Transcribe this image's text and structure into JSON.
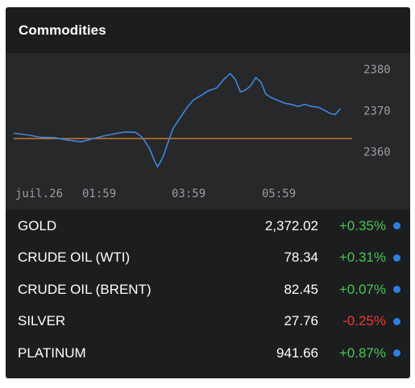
{
  "header": {
    "title": "Commodities"
  },
  "chart_data": {
    "type": "line",
    "x_ticks": [
      "juil.26",
      "01:59",
      "03:59",
      "05:59"
    ],
    "y_ticks": [
      2380,
      2370,
      2360
    ],
    "ylim": [
      2355,
      2382
    ],
    "reference_value": 2363.2,
    "series": [
      {
        "values": [
          [
            0,
            2364.5
          ],
          [
            0.04,
            2364.1
          ],
          [
            0.08,
            2363.5
          ],
          [
            0.12,
            2363.4
          ],
          [
            0.16,
            2362.8
          ],
          [
            0.2,
            2362.4
          ],
          [
            0.24,
            2363.3
          ],
          [
            0.27,
            2363.9
          ],
          [
            0.3,
            2364.4
          ],
          [
            0.33,
            2364.8
          ],
          [
            0.36,
            2364.7
          ],
          [
            0.38,
            2363.5
          ],
          [
            0.4,
            2361.0
          ],
          [
            0.415,
            2358.0
          ],
          [
            0.425,
            2356.3
          ],
          [
            0.44,
            2358.5
          ],
          [
            0.455,
            2362.0
          ],
          [
            0.47,
            2365.5
          ],
          [
            0.49,
            2368.0
          ],
          [
            0.51,
            2370.5
          ],
          [
            0.53,
            2372.5
          ],
          [
            0.55,
            2373.5
          ],
          [
            0.575,
            2374.8
          ],
          [
            0.6,
            2375.5
          ],
          [
            0.62,
            2377.5
          ],
          [
            0.64,
            2379.0
          ],
          [
            0.655,
            2377.5
          ],
          [
            0.67,
            2374.5
          ],
          [
            0.685,
            2375.0
          ],
          [
            0.7,
            2376.0
          ],
          [
            0.715,
            2378.0
          ],
          [
            0.73,
            2377.0
          ],
          [
            0.745,
            2374.0
          ],
          [
            0.76,
            2373.2
          ],
          [
            0.78,
            2372.5
          ],
          [
            0.8,
            2371.8
          ],
          [
            0.82,
            2371.5
          ],
          [
            0.84,
            2371.0
          ],
          [
            0.86,
            2371.5
          ],
          [
            0.88,
            2371.0
          ],
          [
            0.9,
            2370.8
          ],
          [
            0.92,
            2370.0
          ],
          [
            0.935,
            2369.3
          ],
          [
            0.95,
            2369.0
          ],
          [
            0.965,
            2370.5
          ]
        ]
      }
    ],
    "colors": {
      "line": "#3f86e0",
      "reference": "#c9782a"
    },
    "grid": false
  },
  "commodities": [
    {
      "name": "GOLD",
      "price": "2,372.02",
      "change": "+0.35%",
      "direction": "up"
    },
    {
      "name": "CRUDE OIL (WTI)",
      "price": "78.34",
      "change": "+0.31%",
      "direction": "up"
    },
    {
      "name": "CRUDE OIL (BRENT)",
      "price": "82.45",
      "change": "+0.07%",
      "direction": "up"
    },
    {
      "name": "SILVER",
      "price": "27.76",
      "change": "-0.25%",
      "direction": "down"
    },
    {
      "name": "PLATINUM",
      "price": "941.66",
      "change": "+0.87%",
      "direction": "up"
    }
  ]
}
